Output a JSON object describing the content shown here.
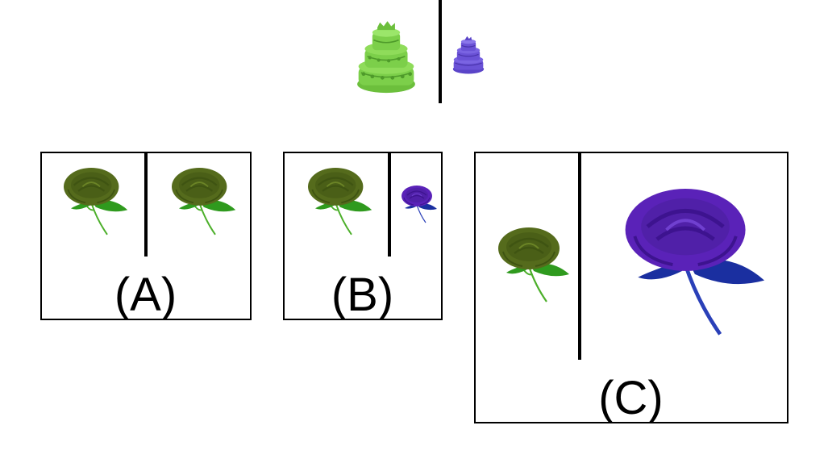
{
  "colors": {
    "green_rose": "#556b1c",
    "green_rose_dark": "#3f5412",
    "green_leaf": "#2f9a1e",
    "green_stem": "#4caf2a",
    "purple_rose": "#5a22b8",
    "purple_rose_dark": "#3d138f",
    "blue_leaf": "#1a2fa0",
    "blue_stem": "#2a40b8",
    "cake_green": "#7ccf4a",
    "cake_green_dark": "#4e9a2a",
    "cake_purple": "#6a52d6",
    "cake_purple_dark": "#4630a8",
    "line": "#000000"
  },
  "example": {
    "left_icon": "green-cake-icon",
    "right_icon": "purple-cake-icon"
  },
  "options": [
    {
      "label": "(A)",
      "left_icon": "green-rose-icon",
      "right_icon": "green-rose-icon"
    },
    {
      "label": "(B)",
      "left_icon": "green-rose-icon",
      "right_icon": "purple-rose-icon"
    },
    {
      "label": "(C)",
      "left_icon": "green-rose-icon",
      "right_icon": "purple-rose-icon"
    }
  ]
}
